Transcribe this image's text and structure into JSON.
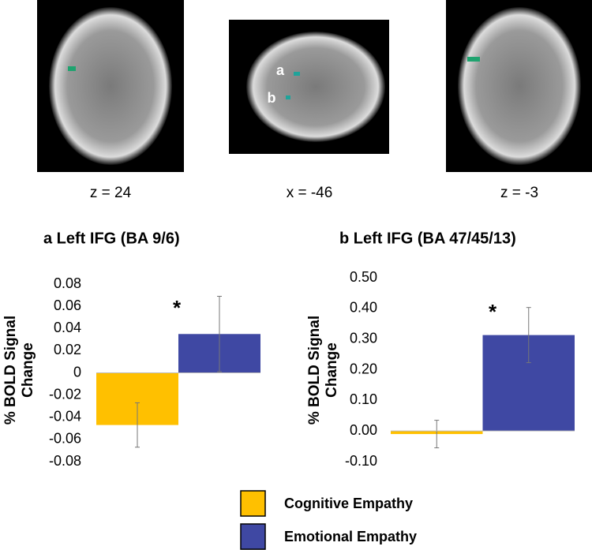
{
  "images": [
    {
      "caption": "z = 24"
    },
    {
      "caption": "x = -46",
      "labels": [
        "a",
        "b"
      ]
    },
    {
      "caption": "z = -3"
    }
  ],
  "legend": [
    {
      "name": "Cognitive Empathy",
      "color": "#ffc000"
    },
    {
      "name": "Emotional Empathy",
      "color": "#3f48a3"
    }
  ],
  "chart_data": [
    {
      "type": "bar",
      "title": "a Left IFG (BA 9/6)",
      "y_label": "% BOLD Signal Change",
      "values": [
        -0.047,
        0.035
      ],
      "errors": [
        0.02,
        0.034
      ],
      "annotation": "*",
      "ylim": [
        -0.08,
        0.08
      ],
      "yticks": [
        -0.08,
        -0.06,
        -0.04,
        -0.02,
        0,
        0.02,
        0.04,
        0.06,
        0.08
      ]
    },
    {
      "type": "bar",
      "title": "b Left IFG (BA 47/45/13)",
      "y_label": "% BOLD Signal Change",
      "values": [
        -0.01,
        0.313
      ],
      "errors": [
        0.045,
        0.09
      ],
      "annotation": "*",
      "ylim": [
        -0.1,
        0.5
      ],
      "yticks": [
        {
          "value": -0.1,
          "label": "-0.10"
        },
        {
          "value": 0,
          "label": "0.00"
        },
        {
          "value": 0.1,
          "label": "0.10"
        },
        {
          "value": 0.2,
          "label": "0.20"
        },
        {
          "value": 0.3,
          "label": "0.30"
        },
        {
          "value": 0.4,
          "label": "0.40"
        },
        {
          "value": 0.5,
          "label": "0.50"
        }
      ]
    }
  ]
}
